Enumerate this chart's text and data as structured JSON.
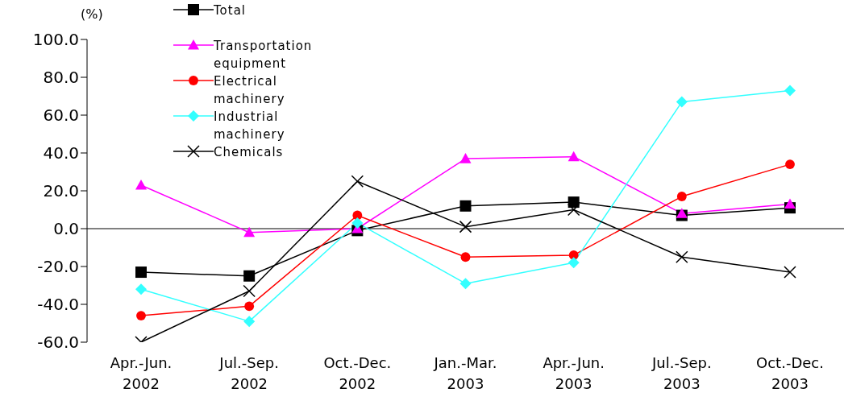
{
  "chart_data": {
    "type": "line",
    "ylabel": "(%)",
    "categories": [
      "Apr.-Jun. 2002",
      "Jul.-Sep. 2002",
      "Oct.-Dec. 2002",
      "Jan.-Mar. 2003",
      "Apr.-Jun. 2003",
      "Jul.-Sep. 2003",
      "Oct.-Dec. 2003"
    ],
    "series": [
      {
        "name": "Total",
        "color": "#000000",
        "marker": "square",
        "values": [
          -23,
          -25,
          -1,
          12,
          14,
          7,
          11
        ]
      },
      {
        "name": "Transportation equipment",
        "color": "#ff00ff",
        "marker": "triangle",
        "values": [
          23,
          -2,
          0,
          37,
          38,
          8,
          13
        ]
      },
      {
        "name": "Electrical machinery",
        "color": "#ff0000",
        "marker": "circle",
        "values": [
          -46,
          -41,
          7,
          -15,
          -14,
          17,
          34
        ]
      },
      {
        "name": "Industrial machinery",
        "color": "#33ffff",
        "marker": "diamond",
        "values": [
          -32,
          -49,
          3,
          -29,
          -18,
          67,
          73
        ]
      },
      {
        "name": "Chemicals",
        "color": "#000000",
        "marker": "cross",
        "values": [
          -60,
          -33,
          25,
          1,
          10,
          -15,
          -23
        ]
      }
    ],
    "ylim": [
      -60,
      100
    ],
    "yticks": [
      {
        "value": -60,
        "label": "-60.0"
      },
      {
        "value": -40,
        "label": "-40.0"
      },
      {
        "value": -20,
        "label": "-20.0"
      },
      {
        "value": 0,
        "label": "0.0"
      },
      {
        "value": 20,
        "label": "20.0"
      },
      {
        "value": 40,
        "label": "40.0"
      },
      {
        "value": 60,
        "label": "60.0"
      },
      {
        "value": 80,
        "label": "80.0"
      },
      {
        "value": 100,
        "label": "100.0"
      }
    ],
    "ref_lines": [
      {
        "axis": "y",
        "value": 0,
        "color": "#000000"
      }
    ],
    "grid": false,
    "legend": "top",
    "line_style": "solid"
  }
}
